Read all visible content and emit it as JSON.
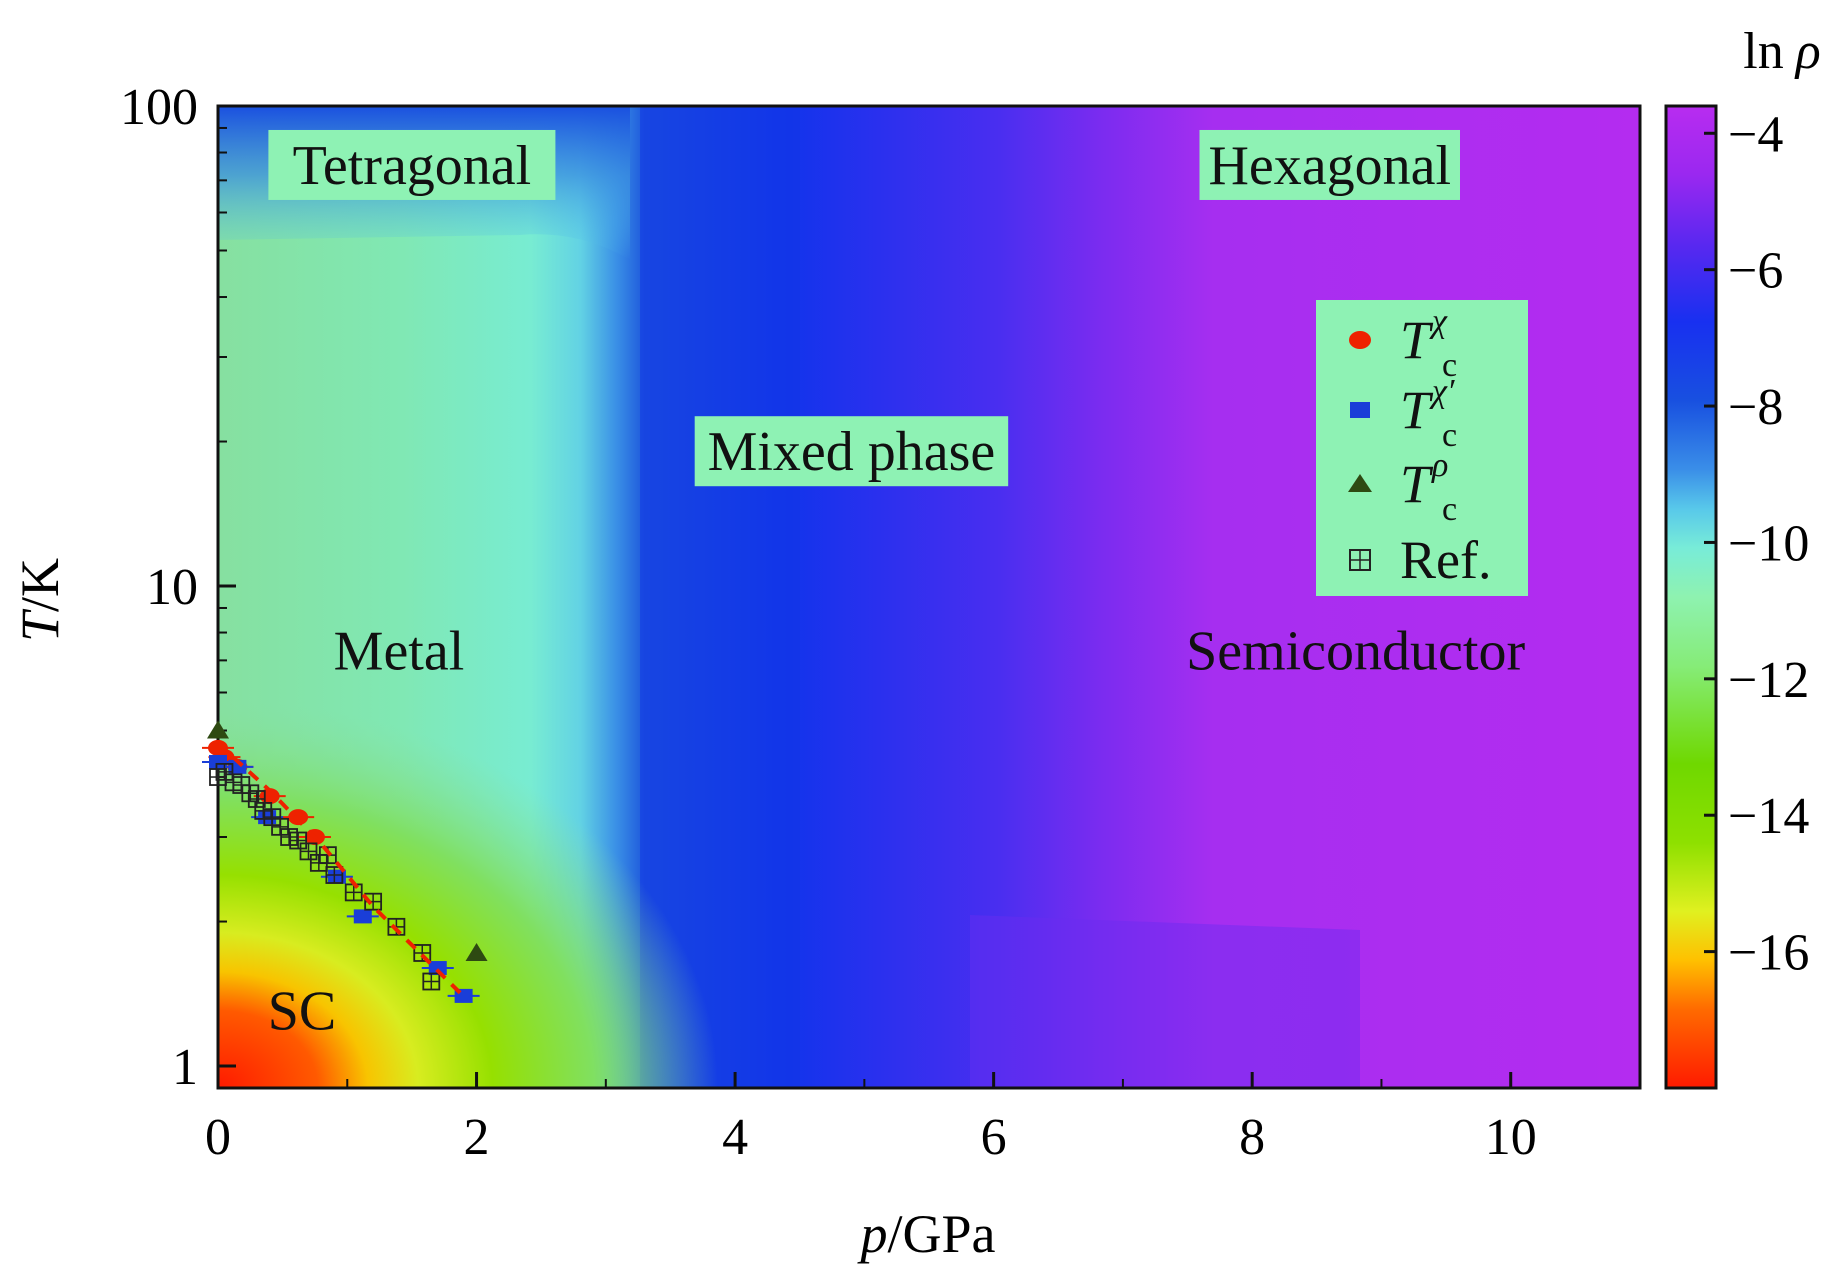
{
  "chart_data": {
    "type": "heatmap",
    "title": "",
    "xlabel_italic": "p",
    "xlabel_unit": "/GPa",
    "ylabel_italic": "T",
    "ylabel_unit": "/K",
    "xlim": [
      0,
      11
    ],
    "ylim": [
      0.9,
      100
    ],
    "y_scale": "log",
    "x_ticks": [
      0,
      2,
      4,
      6,
      8,
      10
    ],
    "x_tick_labels": [
      "0",
      "2",
      "4",
      "6",
      "8",
      "10"
    ],
    "y_ticks": [
      1,
      10,
      100
    ],
    "y_tick_labels": [
      "1",
      "10",
      "100"
    ],
    "colorbar": {
      "label_prefix": "ln",
      "label_symbol": "ρ",
      "range": [
        -18,
        -3.6
      ],
      "ticks": [
        -4,
        -6,
        -8,
        -10,
        -12,
        -14,
        -16
      ],
      "tick_labels": [
        "−4",
        "−6",
        "−8",
        "−10",
        "−12",
        "−14",
        "−16"
      ]
    },
    "region_labels": [
      {
        "text": "Tetragonal",
        "p": 1.5,
        "T": 75,
        "boxed": true
      },
      {
        "text": "Hexagonal",
        "p": 8.6,
        "T": 75,
        "boxed": true
      },
      {
        "text": "Mixed phase",
        "p": 4.9,
        "T": 19,
        "boxed": true
      },
      {
        "text": "Metal",
        "p": 1.4,
        "T": 7.3,
        "boxed": false
      },
      {
        "text": "Semiconductor",
        "p": 8.8,
        "T": 7.3,
        "boxed": false
      },
      {
        "text": "SC",
        "p": 0.65,
        "T": 1.3,
        "boxed": false
      }
    ],
    "legend": {
      "position": "upper-right",
      "entries": [
        {
          "symbol_base": "T",
          "subscript": "c",
          "superscript": "χ",
          "marker": "circle",
          "color": "#ee2200"
        },
        {
          "symbol_base": "T",
          "subscript": "c",
          "superscript": "χ′",
          "marker": "square",
          "color": "#1a3ed8"
        },
        {
          "symbol_base": "T",
          "subscript": "c",
          "superscript": "ρ",
          "marker": "triangle",
          "color": "#2e4a12"
        },
        {
          "label": "Ref.",
          "marker": "boxed-plus",
          "color": "#222222"
        }
      ]
    },
    "series": [
      {
        "name": "Tc chi",
        "marker": "circle",
        "color": "#ee2200",
        "p": [
          0.0,
          0.05,
          0.15,
          0.4,
          0.62,
          0.75
        ],
        "T": [
          4.6,
          4.4,
          4.2,
          3.65,
          3.3,
          3.0
        ]
      },
      {
        "name": "Tc chi prime",
        "marker": "square",
        "color": "#1a3ed8",
        "p": [
          0.0,
          0.15,
          0.38,
          0.92,
          1.12,
          1.7,
          1.9
        ],
        "T": [
          4.3,
          4.2,
          3.3,
          2.48,
          2.05,
          1.6,
          1.4
        ]
      },
      {
        "name": "Tc rho",
        "marker": "triangle",
        "color": "#2e4a12",
        "p": [
          0.0,
          2.0
        ],
        "T": [
          5.0,
          1.72
        ]
      },
      {
        "name": "Ref.",
        "marker": "boxed-plus",
        "color": "#222222",
        "p": [
          0.0,
          0.05,
          0.12,
          0.18,
          0.25,
          0.3,
          0.35,
          0.42,
          0.48,
          0.55,
          0.62,
          0.7,
          0.78,
          0.85,
          0.9,
          1.05,
          1.2,
          1.38,
          1.58,
          1.65
        ],
        "T": [
          4.0,
          4.1,
          3.9,
          3.85,
          3.7,
          3.6,
          3.4,
          3.3,
          3.15,
          3.0,
          2.95,
          2.8,
          2.65,
          2.75,
          2.5,
          2.3,
          2.2,
          1.95,
          1.72,
          1.5
        ]
      },
      {
        "name": "guide line",
        "marker": "dashed-line",
        "color": "#ee2200",
        "p": [
          0.0,
          0.4,
          0.8,
          1.2,
          1.6,
          1.92
        ],
        "T": [
          4.7,
          3.75,
          2.9,
          2.15,
          1.68,
          1.38
        ]
      }
    ]
  }
}
